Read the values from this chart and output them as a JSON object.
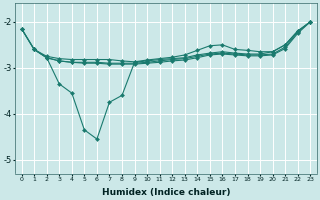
{
  "xlabel": "Humidex (Indice chaleur)",
  "bg_color": "#cce8e8",
  "grid_color": "#ffffff",
  "line_color": "#1a7a6e",
  "xlim": [
    -0.5,
    23.5
  ],
  "ylim": [
    -5.3,
    -1.6
  ],
  "xticks": [
    0,
    1,
    2,
    3,
    4,
    5,
    6,
    7,
    8,
    9,
    10,
    11,
    12,
    13,
    14,
    15,
    16,
    17,
    18,
    19,
    20,
    21,
    22,
    23
  ],
  "yticks": [
    -5,
    -4,
    -3,
    -2
  ],
  "series": [
    {
      "x": [
        0,
        1,
        2,
        3,
        4,
        5,
        6,
        7,
        8,
        9,
        10,
        11,
        12,
        13,
        14,
        15,
        16,
        17,
        18,
        19,
        20,
        21,
        22,
        23
      ],
      "y": [
        -2.15,
        -2.6,
        -2.75,
        -2.8,
        -2.82,
        -2.82,
        -2.82,
        -2.82,
        -2.85,
        -2.87,
        -2.83,
        -2.8,
        -2.77,
        -2.72,
        -2.62,
        -2.52,
        -2.5,
        -2.6,
        -2.62,
        -2.65,
        -2.65,
        -2.5,
        -2.2,
        -2.0
      ],
      "marker": "D",
      "markersize": 2.0
    },
    {
      "x": [
        0,
        1,
        2,
        3,
        4,
        5,
        6,
        7,
        8,
        9,
        10,
        11,
        12,
        13,
        14,
        15,
        16,
        17,
        18,
        19,
        20,
        21,
        22,
        23
      ],
      "y": [
        -2.15,
        -2.6,
        -2.78,
        -2.85,
        -2.88,
        -2.88,
        -2.88,
        -2.9,
        -2.9,
        -2.9,
        -2.88,
        -2.85,
        -2.82,
        -2.8,
        -2.75,
        -2.7,
        -2.68,
        -2.7,
        -2.72,
        -2.72,
        -2.7,
        -2.55,
        -2.22,
        -2.0
      ],
      "marker": "D",
      "markersize": 2.0
    },
    {
      "x": [
        1,
        2,
        3,
        4,
        5,
        6,
        7,
        8,
        9,
        10,
        11,
        12,
        13,
        14,
        15,
        16,
        17,
        18,
        19,
        20,
        21,
        22,
        23
      ],
      "y": [
        -2.6,
        -2.78,
        -2.85,
        -2.88,
        -2.9,
        -2.9,
        -2.92,
        -2.92,
        -2.92,
        -2.9,
        -2.88,
        -2.85,
        -2.83,
        -2.78,
        -2.72,
        -2.7,
        -2.72,
        -2.74,
        -2.74,
        -2.72,
        -2.58,
        -2.25,
        -2.0
      ],
      "marker": "D",
      "markersize": 2.0
    },
    {
      "x": [
        0,
        1,
        2,
        3,
        4,
        5,
        6,
        7,
        8,
        9,
        10,
        11,
        12,
        13,
        14,
        15,
        16,
        17,
        18,
        19,
        20,
        21,
        22,
        23
      ],
      "y": [
        -2.15,
        -2.6,
        -2.78,
        -3.35,
        -3.55,
        -4.35,
        -4.55,
        -3.75,
        -3.6,
        -2.88,
        -2.85,
        -2.82,
        -2.8,
        -2.78,
        -2.72,
        -2.68,
        -2.65,
        -2.68,
        -2.7,
        -2.7,
        -2.65,
        -2.5,
        -2.2,
        -2.0
      ],
      "marker": "D",
      "markersize": 2.0
    }
  ]
}
